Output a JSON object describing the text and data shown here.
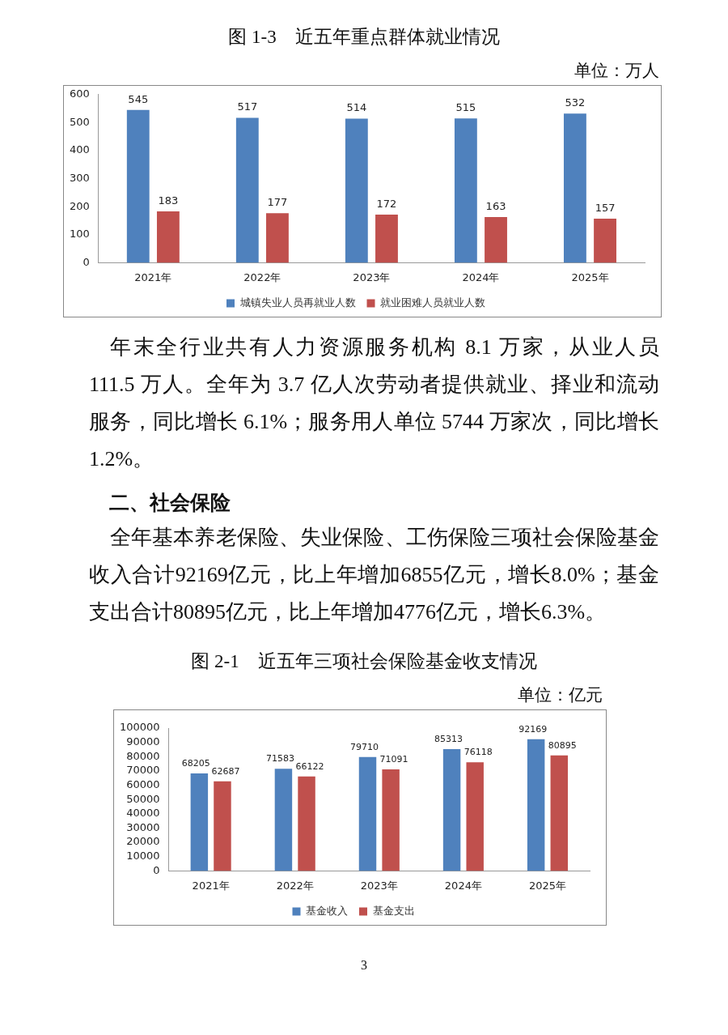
{
  "chart_data": [
    {
      "type": "bar",
      "title": "图 1-3　近五年重点群体就业情况",
      "subtitle": "单位：万人",
      "categories": [
        "2021年",
        "2022年",
        "2023年",
        "2024年",
        "2025年"
      ],
      "series": [
        {
          "name": "城镇失业人员再就业人数",
          "color": "#4f81bd",
          "values": [
            545,
            517,
            514,
            515,
            532
          ]
        },
        {
          "name": "就业困难人员就业人数",
          "color": "#c0504d",
          "values": [
            183,
            177,
            172,
            163,
            157
          ]
        }
      ],
      "ylim": [
        0,
        600
      ],
      "yticks": [
        0,
        100,
        200,
        300,
        400,
        500,
        600
      ],
      "grid": false,
      "legend": "bottom",
      "data_labels": true
    },
    {
      "type": "other",
      "annotations": [
        "年末全行业共有人力资源服务机构 8.1 万家，从业人员 111.5 万人。全年为 3.7 亿人次劳动者提供就业、择业和流动服务，同比增长 6.1%；服务用人单位 5744 万家次，同比增长 1.2%。"
      ]
    },
    {
      "type": "other",
      "title": "二、社会保险",
      "annotations": [
        "全年基本养老保险、失业保险、工伤保险三项社会保险基金收入合计92169亿元，比上年增加6855亿元，增长8.0%；基金支出合计80895亿元，比上年增加4776亿元，增长6.3%。"
      ]
    },
    {
      "type": "bar",
      "title": "图 2-1　近五年三项社会保险基金收支情况",
      "subtitle": "单位：亿元",
      "categories": [
        "2021年",
        "2022年",
        "2023年",
        "2024年",
        "2025年"
      ],
      "series": [
        {
          "name": "基金收入",
          "color": "#4f81bd",
          "values": [
            68205,
            71583,
            79710,
            85313,
            92169
          ]
        },
        {
          "name": "基金支出",
          "color": "#c0504d",
          "values": [
            62687,
            66122,
            71091,
            76118,
            80895
          ]
        }
      ],
      "ylim": [
        0,
        100000
      ],
      "yticks": [
        0,
        10000,
        20000,
        30000,
        40000,
        50000,
        60000,
        70000,
        80000,
        90000,
        100000
      ],
      "grid": false,
      "legend": "bottom",
      "data_labels": true,
      "annotations": [
        "3"
      ]
    }
  ]
}
